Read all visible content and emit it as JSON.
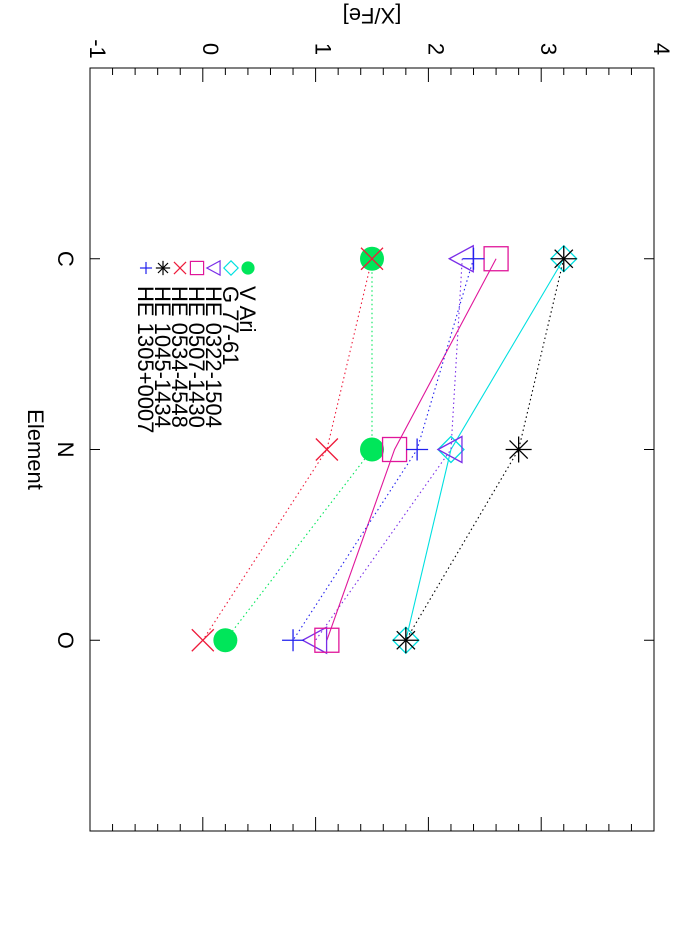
{
  "chart_data": {
    "type": "line",
    "orientation": "rotated-90",
    "xlabel": "Element",
    "ylabel": "[X/Fe]",
    "categories": [
      "C",
      "N",
      "O"
    ],
    "xlim": [
      0,
      4
    ],
    "ylim": [
      -1,
      4
    ],
    "y_ticks": [
      "-1",
      "0",
      "1",
      "2",
      "3",
      "4"
    ],
    "grid": false,
    "legend_position": "upper-left",
    "series": [
      {
        "name": "V Ari",
        "color": "#00e65a",
        "marker": "filled-circle",
        "linestyle": "dotted",
        "values": [
          1.5,
          1.5,
          0.2
        ]
      },
      {
        "name": "G 77-61",
        "color": "#00e0e0",
        "marker": "diamond",
        "linestyle": "solid",
        "values": [
          3.2,
          2.2,
          1.8
        ]
      },
      {
        "name": "HE 0322-1504",
        "color": "#7a2ee8",
        "marker": "triangle",
        "linestyle": "dotted",
        "values": [
          2.3,
          2.2,
          1.0
        ]
      },
      {
        "name": "HE 0507-1430",
        "color": "#e0169a",
        "marker": "square",
        "linestyle": "solid",
        "values": [
          2.6,
          1.7,
          1.1
        ]
      },
      {
        "name": "HE 0534-4548",
        "color": "#ee1a3a",
        "marker": "cross",
        "linestyle": "dotted",
        "values": [
          1.5,
          1.1,
          0.0
        ]
      },
      {
        "name": "HE 1045-1434",
        "color": "#000000",
        "marker": "asterisk",
        "linestyle": "dotted",
        "values": [
          3.2,
          2.8,
          1.8
        ]
      },
      {
        "name": "HE 1305+0007",
        "color": "#2020ee",
        "marker": "plus",
        "linestyle": "dotted",
        "values": [
          2.4,
          1.9,
          0.8
        ]
      }
    ]
  }
}
